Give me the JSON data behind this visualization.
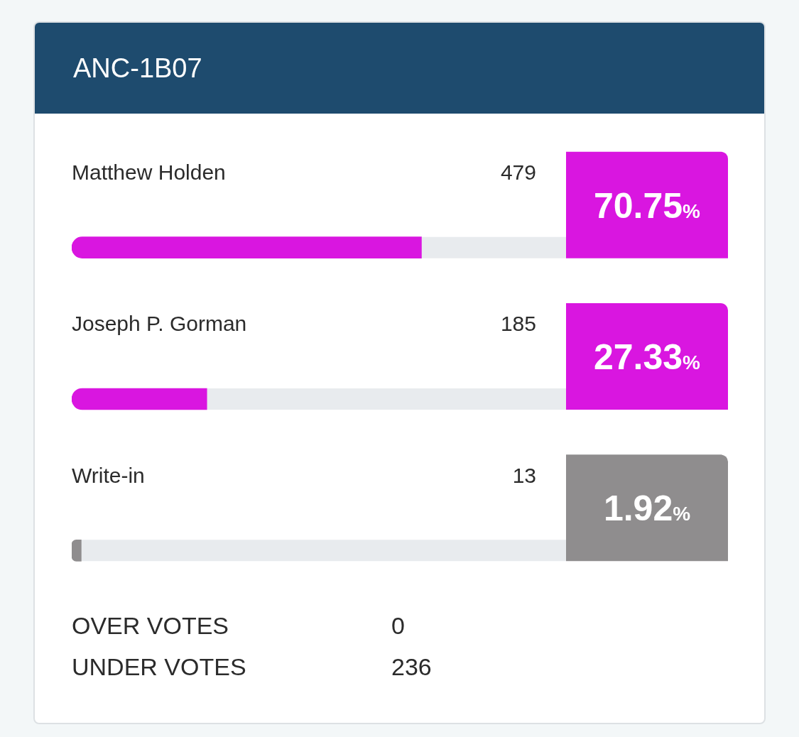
{
  "chart_data": {
    "type": "bar",
    "orientation": "horizontal",
    "title": "ANC-1B07",
    "categories": [
      "Matthew Holden",
      "Joseph P. Gorman",
      "Write-in"
    ],
    "values": [
      70.75,
      27.33,
      1.92
    ],
    "colors": [
      "#d916e0",
      "#d916e0",
      "#8f8d8e"
    ],
    "value_labels": [
      "70.75%",
      "27.33%",
      "1.92%"
    ],
    "xlim": [
      0,
      100
    ],
    "tick_labels": false,
    "legend": false,
    "annotations": [
      "479",
      "185",
      "13",
      "OVER VOTES",
      "0",
      "UNDER VOTES",
      "236"
    ]
  }
}
